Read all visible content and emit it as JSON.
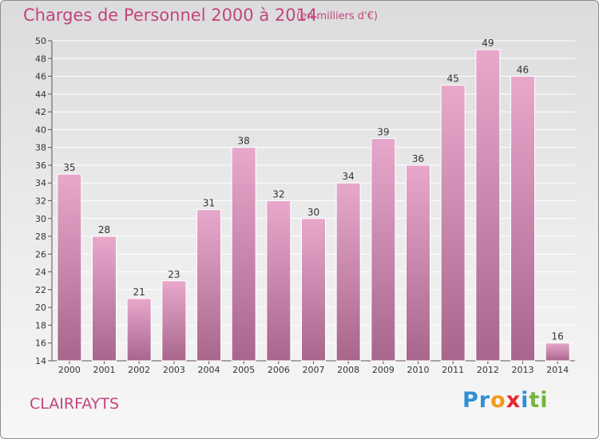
{
  "header": {
    "title": "Charges de Personnel 2000 à 2014",
    "subtitle": "(en milliers d'€)"
  },
  "footer": {
    "commune": "CLAIRFAYTS",
    "logo": {
      "letters": [
        "P",
        "r",
        "o",
        "x",
        "i",
        "t",
        "i"
      ],
      "colors": [
        "#2f8fd6",
        "#2f8fd6",
        "#f39a1b",
        "#e8232b",
        "#2f8fd6",
        "#6fb83a",
        "#6fb83a"
      ]
    }
  },
  "chart_data": {
    "type": "bar",
    "title": "Charges de Personnel 2000 à 2014",
    "subtitle": "(en milliers d'€)",
    "categories": [
      "2000",
      "2001",
      "2002",
      "2003",
      "2004",
      "2005",
      "2006",
      "2007",
      "2008",
      "2009",
      "2010",
      "2011",
      "2012",
      "2013",
      "2014"
    ],
    "values": [
      35,
      28,
      21,
      23,
      31,
      38,
      32,
      30,
      34,
      39,
      36,
      45,
      49,
      46,
      16
    ],
    "value_labels": [
      "35",
      "28",
      "21",
      "23",
      "31",
      "38",
      "32",
      "30",
      "34",
      "39",
      "36",
      "45",
      "49",
      "46",
      "16"
    ],
    "ylim": [
      14,
      50
    ],
    "yticks": [
      14,
      16,
      18,
      20,
      22,
      24,
      26,
      28,
      30,
      32,
      34,
      36,
      38,
      40,
      42,
      44,
      46,
      48,
      50
    ],
    "ytick_labels": [
      "14",
      "16",
      "18",
      "20",
      "22",
      "24",
      "26",
      "28",
      "30",
      "32",
      "34",
      "36",
      "38",
      "40",
      "42",
      "44",
      "46",
      "48",
      "50"
    ],
    "grid": true,
    "legend": "none",
    "bar_color_top": "#e8a8cc",
    "bar_color_bottom": "#a8668c",
    "title_color": "#c2457e"
  }
}
